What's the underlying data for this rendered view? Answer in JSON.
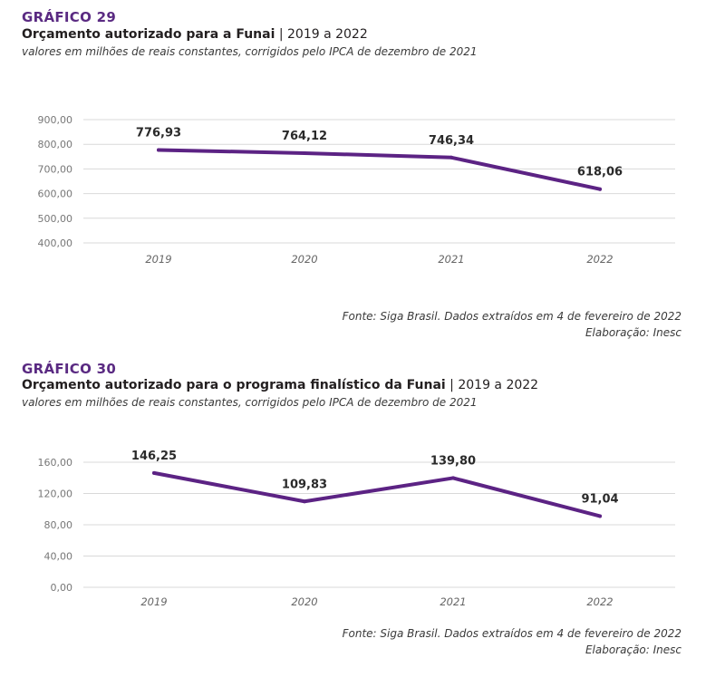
{
  "charts": [
    {
      "label": "GRÁFICO 29",
      "title_bold": "Orçamento autorizado para a Funai",
      "title_rest": " | 2019 a 2022",
      "subtitle": "valores em milhões de reais constantes, corrigidos pelo IPCA de dezembro de 2021",
      "source_line1": "Fonte: Siga Brasil. Dados extraídos em 4 de fevereiro de 2022",
      "source_line2": "Elaboração: Inesc"
    },
    {
      "label": "GRÁFICO 30",
      "title_bold": "Orçamento autorizado para o programa finalístico da Funai",
      "title_rest": " | 2019 a 2022",
      "subtitle": "valores em milhões de reais constantes, corrigidos pelo IPCA de dezembro de 2021",
      "source_line1": "Fonte: Siga Brasil. Dados extraídos em 4 de fevereiro de 2022",
      "source_line2": "Elaboração: Inesc"
    }
  ],
  "colors": {
    "line": "#5c2384",
    "label": "#5a2a82",
    "grid": "#d9d9d9"
  },
  "chart_data": [
    {
      "type": "line",
      "title": "Orçamento autorizado para a Funai | 2019 a 2022",
      "categories": [
        "2019",
        "2020",
        "2021",
        "2022"
      ],
      "values": [
        776.93,
        764.12,
        746.34,
        618.06
      ],
      "value_labels": [
        "776,93",
        "764,12",
        "746,34",
        "618,06"
      ],
      "ylim": [
        400,
        900
      ],
      "yticks": [
        400,
        500,
        600,
        700,
        800,
        900
      ],
      "ytick_labels": [
        "400,00",
        "500,00",
        "600,00",
        "700,00",
        "800,00",
        "900,00"
      ],
      "grid": true,
      "xlabel": "",
      "ylabel": ""
    },
    {
      "type": "line",
      "title": "Orçamento autorizado para o programa finalístico da Funai | 2019 a 2022",
      "categories": [
        "2019",
        "2020",
        "2021",
        "2022"
      ],
      "values": [
        146.25,
        109.83,
        139.8,
        91.04
      ],
      "value_labels": [
        "146,25",
        "109,83",
        "139,80",
        "91,04"
      ],
      "ylim": [
        0,
        160
      ],
      "yticks": [
        0,
        40,
        80,
        120,
        160
      ],
      "ytick_labels": [
        "0,00",
        "40,00",
        "80,00",
        "120,00",
        "160,00"
      ],
      "grid": true,
      "xlabel": "",
      "ylabel": ""
    }
  ]
}
